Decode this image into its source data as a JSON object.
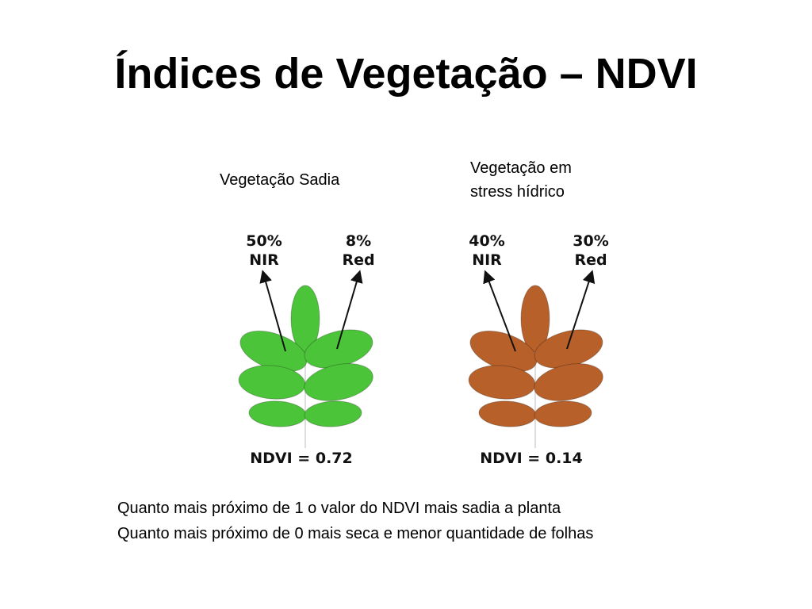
{
  "title": "Índices de Vegetação – NDVI",
  "healthy": {
    "caption": "Vegetação Sadia",
    "nir_pct": "50%",
    "nir_label": "NIR",
    "red_pct": "8%",
    "red_label": "Red",
    "ndvi": "NDVI = 0.72",
    "leaf_color": "#4cc43a"
  },
  "stressed": {
    "caption_line1": "Vegetação em",
    "caption_line2": "stress hídrico",
    "nir_pct": "40%",
    "nir_label": "NIR",
    "red_pct": "30%",
    "red_label": "Red",
    "ndvi": "NDVI = 0.14",
    "leaf_color": "#b8602a"
  },
  "notes": [
    "Quanto mais próximo de 1 o valor do NDVI mais sadia a planta",
    "Quanto mais próximo de 0 mais seca e menor quantidade de folhas"
  ]
}
